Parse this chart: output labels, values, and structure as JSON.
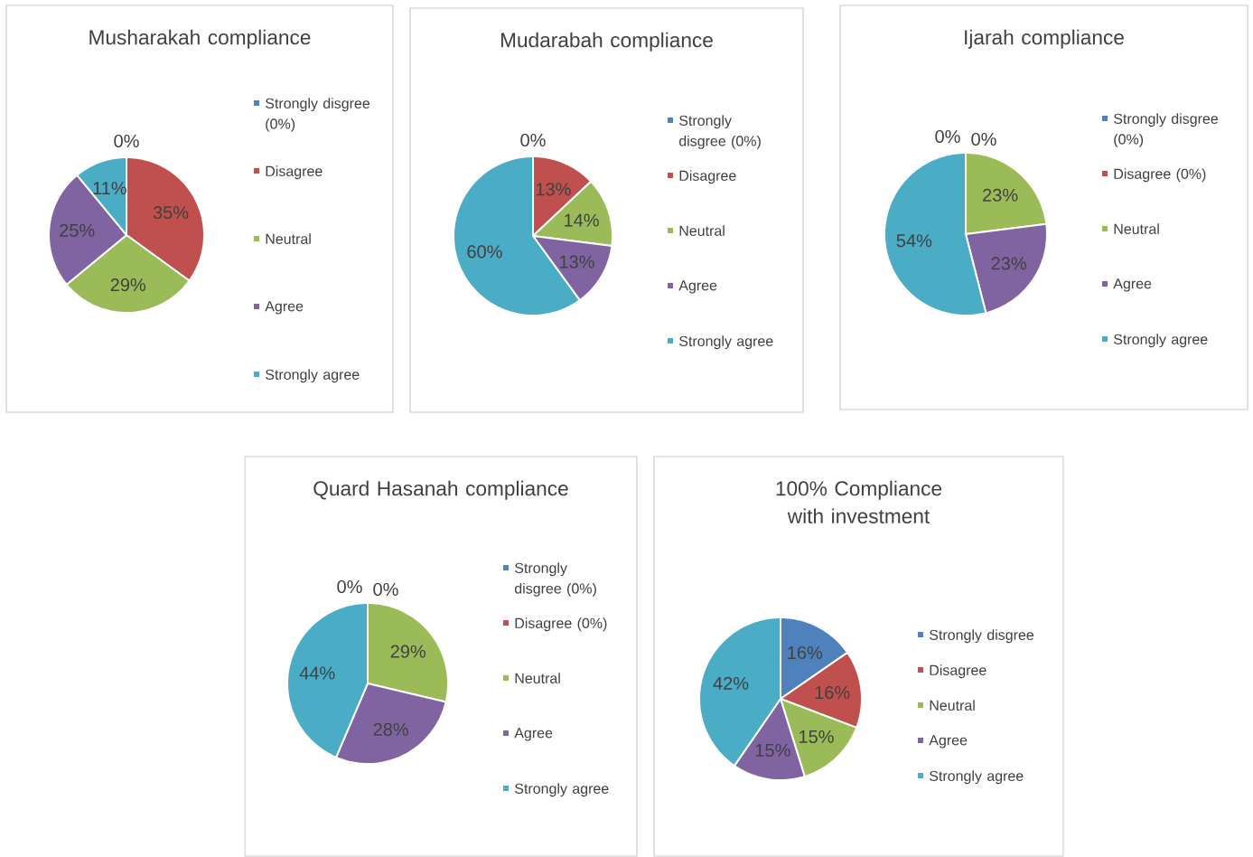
{
  "chart_data": [
    {
      "type": "pie",
      "title": "Musharakah compliance",
      "categories": [
        "Strongly disgree (0%)",
        "Disagree",
        "Neutral",
        "Agree",
        "Strongly agree"
      ],
      "values": [
        0,
        35,
        29,
        25,
        11
      ],
      "value_labels": [
        "0%",
        "35%",
        "29%",
        "25%",
        "11%"
      ],
      "colors": [
        "#4f81bd",
        "#c0504d",
        "#9bbb59",
        "#8064a2",
        "#4bacc6"
      ],
      "legend": "right"
    },
    {
      "type": "pie",
      "title": "Mudarabah compliance",
      "categories": [
        "Strongly disgree (0%)",
        "Disagree",
        "Neutral",
        "Agree",
        "Strongly agree"
      ],
      "values": [
        0,
        13,
        14,
        13,
        60
      ],
      "value_labels": [
        "0%",
        "13%",
        "14%",
        "13%",
        "60%"
      ],
      "colors": [
        "#4f81bd",
        "#c0504d",
        "#9bbb59",
        "#8064a2",
        "#4bacc6"
      ],
      "legend": "right"
    },
    {
      "type": "pie",
      "title": "Ijarah compliance",
      "categories": [
        "Strongly disgree (0%)",
        "Disagree (0%)",
        "Neutral",
        "Agree",
        "Strongly agree"
      ],
      "values": [
        0,
        0,
        23,
        23,
        54
      ],
      "value_labels": [
        "0%",
        "0%",
        "23%",
        "23%",
        "54%"
      ],
      "colors": [
        "#4f81bd",
        "#c0504d",
        "#9bbb59",
        "#8064a2",
        "#4bacc6"
      ],
      "legend": "right"
    },
    {
      "type": "pie",
      "title": "Quard Hasanah compliance",
      "categories": [
        "Strongly disgree (0%)",
        "Disagree (0%)",
        "Neutral",
        "Agree",
        "Strongly agree"
      ],
      "values": [
        0,
        0,
        29,
        28,
        44
      ],
      "value_labels": [
        "0%",
        "0%",
        "29%",
        "28%",
        "44%"
      ],
      "colors": [
        "#4f81bd",
        "#c0504d",
        "#9bbb59",
        "#8064a2",
        "#4bacc6"
      ],
      "legend": "right"
    },
    {
      "type": "pie",
      "title": "100% Compliance with investment",
      "categories": [
        "Strongly disgree",
        "Disagree",
        "Neutral",
        "Agree",
        "Strongly agree"
      ],
      "values": [
        16,
        16,
        15,
        15,
        42
      ],
      "value_labels": [
        "16%",
        "16%",
        "15%",
        "15%",
        "42%"
      ],
      "colors": [
        "#4f81bd",
        "#c0504d",
        "#9bbb59",
        "#8064a2",
        "#4bacc6"
      ],
      "legend": "right"
    }
  ]
}
